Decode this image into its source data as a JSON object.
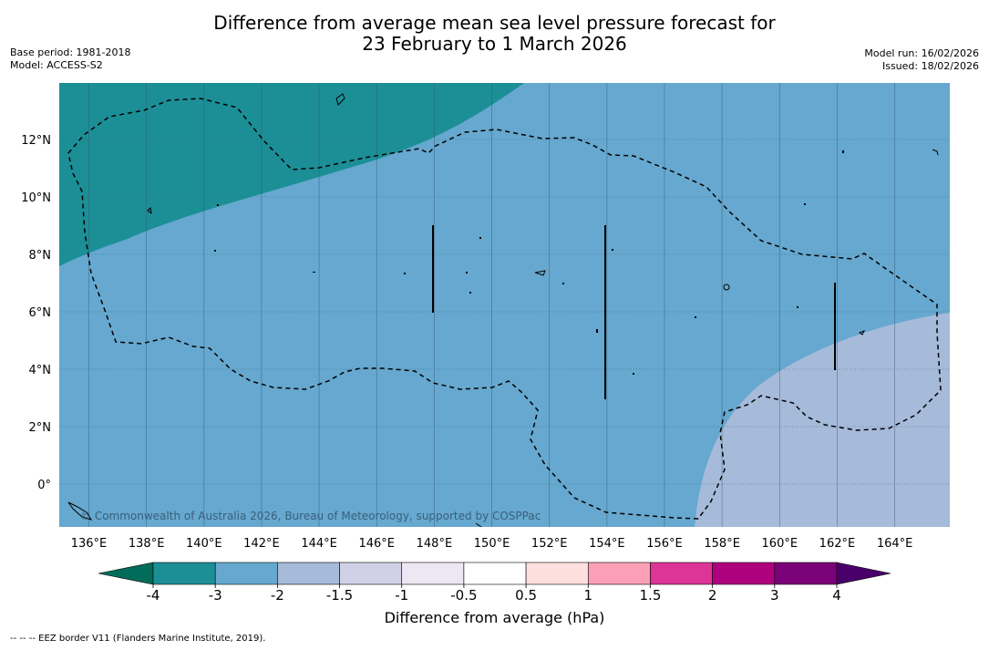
{
  "title": {
    "line1": "Difference from average mean sea level pressure forecast for",
    "line2": "23 February to 1 March 2026"
  },
  "meta_left": {
    "base_period": "Base period: 1981-2018",
    "model": "Model: ACCESS-S2"
  },
  "meta_right": {
    "model_run": "Model run: 16/02/2026",
    "issued": "Issued: 18/02/2026"
  },
  "map": {
    "lon_range": [
      135,
      166
    ],
    "lat_range": [
      -1.5,
      14
    ],
    "lon_labels": [
      "136°E",
      "138°E",
      "140°E",
      "142°E",
      "144°E",
      "146°E",
      "148°E",
      "150°E",
      "152°E",
      "154°E",
      "156°E",
      "158°E",
      "160°E",
      "162°E",
      "164°E"
    ],
    "lat_labels": [
      "0°",
      "2°N",
      "4°N",
      "6°N",
      "8°N",
      "10°N",
      "12°N"
    ],
    "copyright": "© Commonwealth of Australia 2026, Bureau of Meteorology, supported by COSPPac",
    "fields": [
      {
        "category": "-4 to -3",
        "color": "#1c8f96"
      },
      {
        "category": "-3 to -2",
        "color": "#66a8cf"
      },
      {
        "category": "-2 to -1.5",
        "color": "#a6bad9"
      }
    ]
  },
  "colorbar": {
    "ticks": [
      "-4",
      "-3",
      "-2",
      "-1.5",
      "-1",
      "-0.5",
      "0.5",
      "1",
      "1.5",
      "2",
      "3",
      "4"
    ],
    "colors": [
      "#1c8f96",
      "#66a8cf",
      "#a6bad9",
      "#d0d1e6",
      "#ece7f2",
      "#ffffff",
      "#fde0dd",
      "#fa9fb5",
      "#dd3497",
      "#ae017e",
      "#7a0177"
    ],
    "under_color": "#016c59",
    "over_color": "#49006a",
    "label": "Difference from average (hPa)"
  },
  "footer": "--  --  -- EEZ border V11 (Flanders Marine Institute, 2019)."
}
